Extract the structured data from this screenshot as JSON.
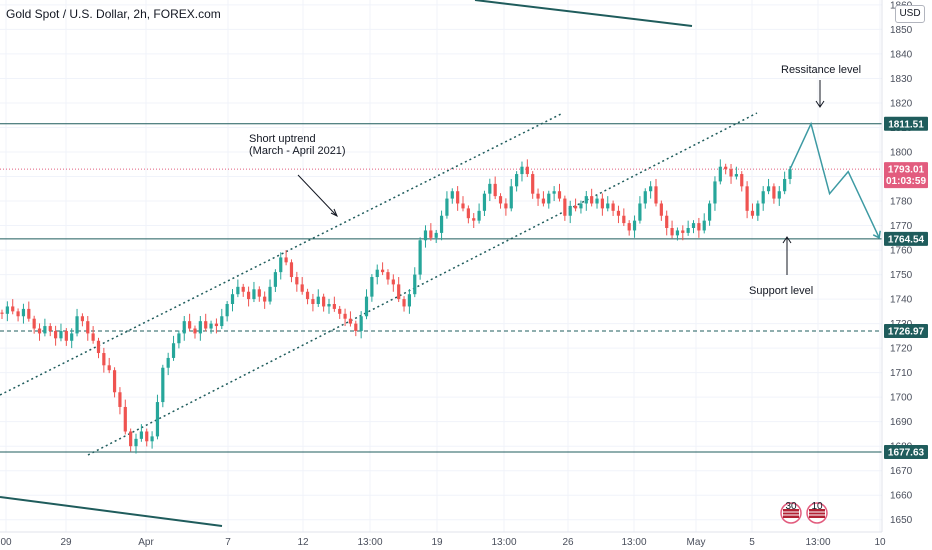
{
  "title": "Gold Spot / U.S. Dollar, 2h, FOREX.com",
  "currency": "USD",
  "colors": {
    "line": "#1f5c5c",
    "up": "#26a69a",
    "down": "#ef5350",
    "arrow": "#3d9aa3",
    "current_price_bg": "#e25c7e",
    "level_bg": "#1f5c5c"
  },
  "annotations": {
    "uptrend_line1": "Short uptrend",
    "uptrend_line2": "(March - April 2021)",
    "resistance": "Ressitance level",
    "support": "Support level"
  },
  "badges": {
    "econ_30": "30",
    "econ_10": "10"
  },
  "chart_data": {
    "type": "candlestick",
    "ylim": [
      1645,
      1862
    ],
    "y_ticks": [
      1650,
      1660,
      1670,
      1680,
      1690,
      1700,
      1710,
      1720,
      1730,
      1740,
      1750,
      1760,
      1770,
      1780,
      1790,
      1800,
      1810,
      1820,
      1830,
      1840,
      1850,
      1860
    ],
    "x_ticks": [
      "00",
      "29",
      "Apr",
      "7",
      "12",
      "13:00",
      "19",
      "13:00",
      "26",
      "13:00",
      "May",
      "5",
      "13:00",
      "10"
    ],
    "price_levels": [
      {
        "label": "1811.51",
        "value": 1811.51,
        "style": "solid"
      },
      {
        "label": "1764.54",
        "value": 1764.54,
        "style": "solid"
      },
      {
        "label": "1726.97",
        "value": 1726.97,
        "style": "dashed"
      },
      {
        "label": "1677.63",
        "value": 1677.63,
        "style": "solid"
      }
    ],
    "current_price": {
      "value": 1793.01,
      "label": "1793.01",
      "countdown": "01:03:59"
    },
    "closes": [
      1734,
      1737,
      1735,
      1733,
      1736,
      1732,
      1728,
      1726,
      1729,
      1727,
      1724,
      1727,
      1723,
      1726,
      1733,
      1731,
      1726,
      1723,
      1718,
      1713,
      1711,
      1702,
      1696,
      1686,
      1680,
      1683,
      1686,
      1682,
      1684,
      1698,
      1712,
      1716,
      1722,
      1726,
      1731,
      1728,
      1726,
      1731,
      1728,
      1730,
      1729,
      1733,
      1738,
      1742,
      1745,
      1743,
      1740,
      1744,
      1741,
      1739,
      1745,
      1751,
      1757,
      1755,
      1749,
      1746,
      1743,
      1740,
      1738,
      1741,
      1737,
      1738,
      1736,
      1734,
      1732,
      1730,
      1727,
      1733,
      1741,
      1749,
      1752,
      1751,
      1748,
      1746,
      1740,
      1737,
      1742,
      1750,
      1764,
      1768,
      1765,
      1767,
      1774,
      1781,
      1784,
      1779,
      1777,
      1773,
      1772,
      1776,
      1783,
      1787,
      1782,
      1779,
      1777,
      1786,
      1791,
      1794,
      1791,
      1783,
      1781,
      1779,
      1783,
      1784,
      1781,
      1774,
      1778,
      1777,
      1779,
      1782,
      1779,
      1781,
      1777,
      1779,
      1776,
      1774,
      1771,
      1768,
      1772,
      1779,
      1784,
      1786,
      1779,
      1774,
      1769,
      1766,
      1768,
      1767,
      1769,
      1771,
      1768,
      1772,
      1779,
      1788,
      1794,
      1793,
      1790,
      1791,
      1786,
      1776,
      1774,
      1779,
      1784,
      1786,
      1781,
      1784,
      1789,
      1793
    ],
    "forecast_path": [
      [
        1811.51,
        0
      ],
      [
        1783,
        6
      ],
      [
        1792,
        12
      ],
      [
        1765,
        22
      ]
    ]
  }
}
